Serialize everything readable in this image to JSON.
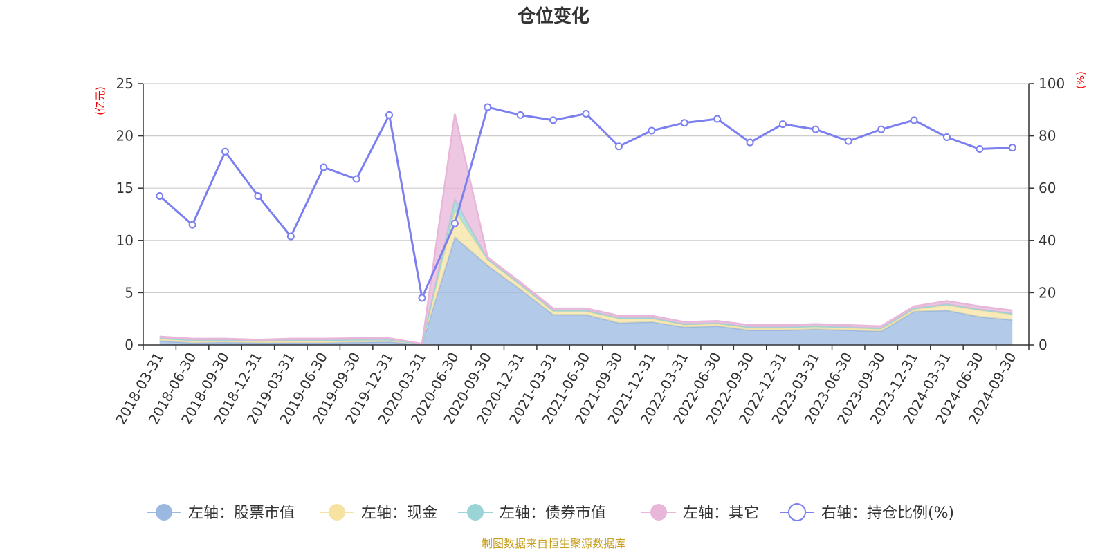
{
  "chart_data": {
    "type": "area",
    "title": "仓位变化",
    "left_axis_unit": "(亿元)",
    "right_axis_unit": "(%)",
    "x": [
      "2018-03-31",
      "2018-06-30",
      "2018-09-30",
      "2018-12-31",
      "2019-03-31",
      "2019-06-30",
      "2019-09-30",
      "2019-12-31",
      "2020-03-31",
      "2020-06-30",
      "2020-09-30",
      "2020-12-31",
      "2021-03-31",
      "2021-06-30",
      "2021-09-30",
      "2021-12-31",
      "2022-03-31",
      "2022-06-30",
      "2022-09-30",
      "2022-12-31",
      "2023-03-31",
      "2023-06-30",
      "2023-09-30",
      "2023-12-31",
      "2024-03-31",
      "2024-06-30",
      "2024-09-30"
    ],
    "ylim_left": [
      0,
      25
    ],
    "yticks_left": [
      0,
      5,
      10,
      15,
      20,
      25
    ],
    "ylim_right": [
      0,
      100
    ],
    "yticks_right": [
      0,
      20,
      40,
      60,
      80,
      100
    ],
    "grid": true,
    "legend_position": "bottom",
    "series": [
      {
        "name": "左轴：股票市值",
        "axis": "left",
        "kind": "stacked-area",
        "color": "#9ab8e0",
        "values": [
          0.4,
          0.2,
          0.25,
          0.2,
          0.2,
          0.2,
          0.25,
          0.3,
          0.05,
          10.3,
          7.6,
          5.3,
          2.9,
          2.9,
          2.1,
          2.2,
          1.7,
          1.8,
          1.4,
          1.4,
          1.5,
          1.4,
          1.3,
          3.2,
          3.3,
          2.7,
          2.4
        ]
      },
      {
        "name": "左轴：现金",
        "axis": "left",
        "kind": "stacked-area",
        "color": "#f7e3a1",
        "values": [
          0.2,
          0.2,
          0.15,
          0.15,
          0.2,
          0.2,
          0.2,
          0.15,
          0.03,
          2.5,
          0.5,
          0.4,
          0.3,
          0.3,
          0.4,
          0.3,
          0.2,
          0.2,
          0.2,
          0.2,
          0.2,
          0.2,
          0.2,
          0.2,
          0.5,
          0.6,
          0.5
        ]
      },
      {
        "name": "左轴：债券市值",
        "axis": "left",
        "kind": "stacked-area",
        "color": "#9bd4d6",
        "values": [
          0.05,
          0.05,
          0.05,
          0.05,
          0.05,
          0.05,
          0.05,
          0.05,
          0.01,
          1.1,
          0.1,
          0.1,
          0.1,
          0.1,
          0.1,
          0.1,
          0.1,
          0.1,
          0.1,
          0.1,
          0.1,
          0.1,
          0.1,
          0.1,
          0.1,
          0.1,
          0.1
        ]
      },
      {
        "name": "左轴：其它",
        "axis": "left",
        "kind": "stacked-area",
        "color": "#e8b6d8",
        "values": [
          0.15,
          0.15,
          0.15,
          0.1,
          0.15,
          0.15,
          0.15,
          0.15,
          0.02,
          8.2,
          0.2,
          0.2,
          0.2,
          0.2,
          0.2,
          0.2,
          0.2,
          0.2,
          0.2,
          0.2,
          0.2,
          0.2,
          0.2,
          0.2,
          0.3,
          0.3,
          0.3
        ]
      },
      {
        "name": "右轴：持仓比例(%)",
        "axis": "right",
        "kind": "line",
        "color": "#7b7fef",
        "values": [
          57,
          46,
          74,
          57,
          41.5,
          68,
          63.5,
          88,
          18,
          46.5,
          91,
          88,
          86,
          88.5,
          76,
          82,
          85,
          86.5,
          77.5,
          84.5,
          82.5,
          78,
          82.5,
          86,
          79.5,
          75,
          75.5
        ]
      }
    ],
    "source": "制图数据来自恒生聚源数据库"
  }
}
